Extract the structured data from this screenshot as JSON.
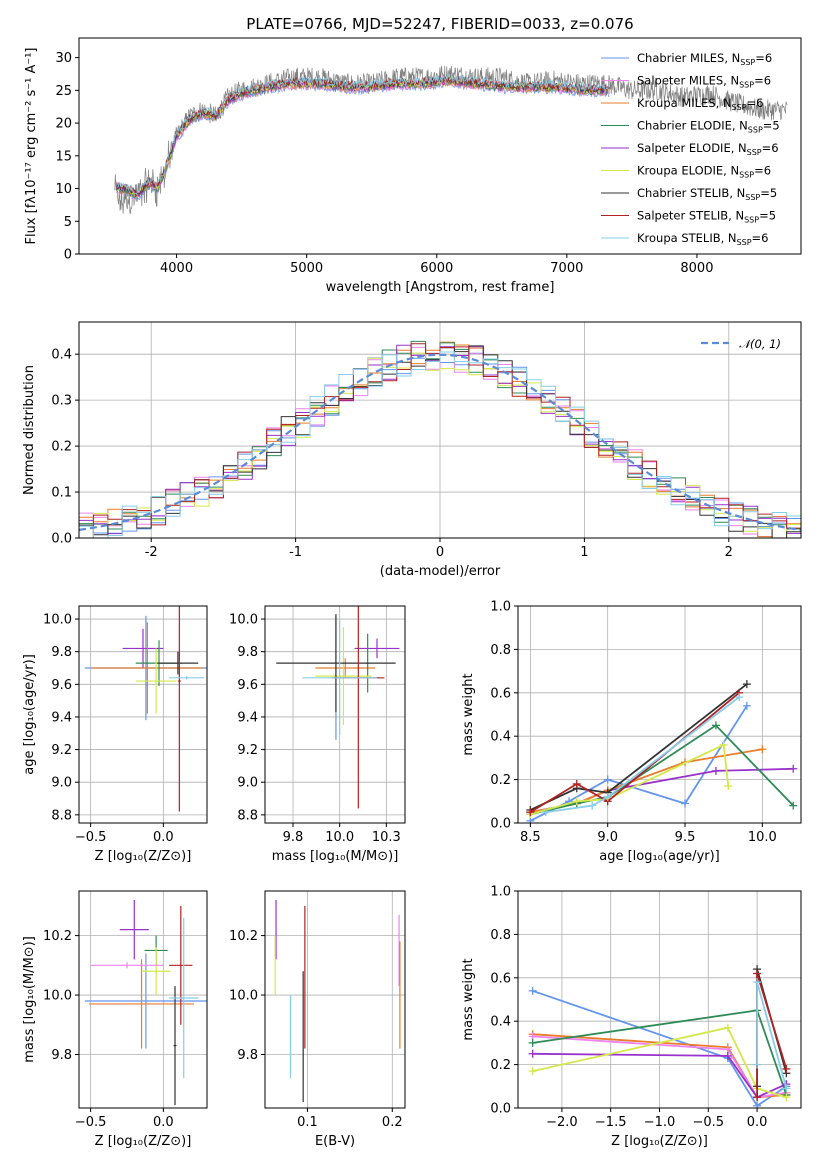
{
  "chart_data": [
    {
      "id": "spectrum",
      "type": "line",
      "title": "PLATE=0766, MJD=52247, FIBERID=0033, z=0.076",
      "xlabel": "wavelength [Angstrom, rest frame]",
      "ylabel": "Flux [fλ10⁻¹⁷ erg cm⁻² s⁻¹ A⁻¹]",
      "xlim": [
        3250,
        8800
      ],
      "ylim": [
        0,
        33
      ],
      "xticks": [
        4000,
        5000,
        6000,
        7000,
        8000
      ],
      "yticks": [
        0,
        5,
        10,
        15,
        20,
        25,
        30
      ],
      "grid": false,
      "legend_position": "top-right",
      "data_x": [
        3525,
        3560,
        3600,
        3700,
        3800,
        3850,
        3900,
        3950,
        4000,
        4100,
        4200,
        4300,
        4400,
        4500,
        4700,
        4900,
        5100,
        5300,
        5500,
        5700,
        5900,
        6100,
        6300,
        6500,
        6700,
        6900,
        7100,
        7300,
        7500,
        7700,
        7900,
        8100,
        8300,
        8500,
        8700
      ],
      "data_y": [
        10,
        8,
        8,
        9,
        11,
        10,
        12,
        15,
        18,
        21,
        22,
        21,
        24,
        25,
        26,
        27,
        27,
        26,
        26,
        27,
        27,
        27.5,
        27,
        27,
        26,
        26.5,
        26,
        26,
        25,
        25,
        24,
        24.5,
        23,
        22,
        22
      ],
      "model_x": [
        3540,
        3600,
        3700,
        3800,
        3850,
        3900,
        3950,
        4000,
        4100,
        4200,
        4300,
        4400,
        4500,
        4700,
        4900,
        5100,
        5300,
        5500,
        5700,
        5900,
        6100,
        6300,
        6500,
        6700,
        6900,
        7100,
        7300
      ],
      "model_y": [
        10,
        10,
        9,
        11,
        10,
        12,
        15,
        18,
        20.5,
        21.5,
        21,
        23.5,
        24.5,
        25.5,
        26,
        26,
        25.5,
        25.5,
        26,
        26,
        26.5,
        26,
        25.5,
        25.5,
        25.5,
        25,
        25
      ],
      "legend": [
        {
          "label": "Chabrier MILES, N",
          "sub": "SSP",
          "tail": "=6",
          "color": "#6495ed"
        },
        {
          "label": "Salpeter MILES, N",
          "sub": "SSP",
          "tail": "=6",
          "color": "#ee82ee"
        },
        {
          "label": "Kroupa MILES, N",
          "sub": "SSP",
          "tail": "=6",
          "color": "#e87d2a"
        },
        {
          "label": "Chabrier ELODIE, N",
          "sub": "SSP",
          "tail": "=5",
          "color": "#2e8b57"
        },
        {
          "label": "Salpeter ELODIE, N",
          "sub": "SSP",
          "tail": "=6",
          "color": "#9932cc"
        },
        {
          "label": "Kroupa ELODIE, N",
          "sub": "SSP",
          "tail": "=6",
          "color": "#d4e84a"
        },
        {
          "label": "Chabrier STELIB, N",
          "sub": "SSP",
          "tail": "=5",
          "color": "#333333"
        },
        {
          "label": "Salpeter STELIB, N",
          "sub": "SSP",
          "tail": "=5",
          "color": "#b22222"
        },
        {
          "label": "Kroupa STELIB, N",
          "sub": "SSP",
          "tail": "=6",
          "color": "#87ceeb"
        }
      ]
    },
    {
      "id": "residuals",
      "type": "line",
      "xlabel": "(data-model)/error",
      "ylabel": "Normed distribution",
      "xlim": [
        -2.5,
        2.5
      ],
      "ylim": [
        0,
        0.47
      ],
      "xticks": [
        -2,
        -1,
        0,
        1,
        2
      ],
      "yticks": [
        0.0,
        0.1,
        0.2,
        0.3,
        0.4
      ],
      "grid": true,
      "legend_position": "top-right",
      "legend": [
        {
          "label": "𝒩(0, 1)",
          "color": "#5b8bd6"
        }
      ]
    },
    {
      "id": "age_vs_Z",
      "type": "scatter",
      "xlabel": "Z [log₁₀(Z/Z⊙)]",
      "ylabel": "age  [log₁₀(age/yr)]",
      "xlim": [
        -0.58,
        0.3
      ],
      "ylim": [
        8.75,
        10.08
      ],
      "xticks": [
        -0.5,
        0.0
      ],
      "yticks": [
        8.8,
        9.0,
        9.2,
        9.4,
        9.6,
        9.8,
        10.0
      ],
      "grid": true,
      "points": [
        {
          "x": -0.12,
          "y": 9.7,
          "xerr": 0.42,
          "yerr": 0.32,
          "color": "#6495ed"
        },
        {
          "x": -0.14,
          "y": 9.82,
          "xerr": 0.14,
          "yerr": 0.12,
          "color": "#9932cc"
        },
        {
          "x": -0.11,
          "y": 9.7,
          "xerr": 0.38,
          "yerr": 0.28,
          "color": "#e87d2a"
        },
        {
          "x": -0.03,
          "y": 9.73,
          "xerr": 0.16,
          "yerr": 0.14,
          "color": "#2e8b57"
        },
        {
          "x": -0.05,
          "y": 9.62,
          "xerr": 0.14,
          "yerr": 0.2,
          "color": "#d4e84a"
        },
        {
          "x": 0.1,
          "y": 9.73,
          "xerr": 0.14,
          "yerr": 0.07,
          "color": "#333333"
        },
        {
          "x": 0.11,
          "y": 9.62,
          "xerr": 0.01,
          "yerr": 0.8,
          "color": "#b22222"
        },
        {
          "x": 0.16,
          "y": 9.64,
          "xerr": 0.12,
          "yerr": 0.01,
          "color": "#87ceeb"
        }
      ]
    },
    {
      "id": "age_vs_mass",
      "type": "scatter",
      "xlabel": "mass [log₁₀(M/M⊙)]",
      "xlim": [
        9.6,
        10.35
      ],
      "ylim": [
        8.75,
        10.08
      ],
      "xticks": [
        9.75,
        10.0,
        10.25
      ],
      "yticks": [
        8.8,
        9.0,
        9.2,
        9.4,
        9.6,
        9.8,
        10.0
      ],
      "grid": true,
      "points": [
        {
          "x": 9.98,
          "y": 9.64,
          "xerr": 0.01,
          "yerr": 0.38,
          "color": "#6495ed"
        },
        {
          "x": 10.2,
          "y": 9.82,
          "xerr": 0.12,
          "yerr": 0.06,
          "color": "#9932cc"
        },
        {
          "x": 10.03,
          "y": 9.7,
          "xerr": 0.16,
          "yerr": 0.06,
          "color": "#e87d2a"
        },
        {
          "x": 10.15,
          "y": 9.73,
          "xerr": 0.01,
          "yerr": 0.18,
          "color": "#2e8b57"
        },
        {
          "x": 10.02,
          "y": 9.65,
          "xerr": 0.15,
          "yerr": 0.3,
          "color": "#d4e84a"
        },
        {
          "x": 9.98,
          "y": 9.73,
          "xerr": 0.32,
          "yerr": 0.3,
          "color": "#333333"
        },
        {
          "x": 10.1,
          "y": 9.64,
          "xerr": 0.14,
          "yerr": 0.8,
          "color": "#b22222"
        },
        {
          "x": 10.0,
          "y": 9.64,
          "xerr": 0.2,
          "yerr": 0.35,
          "color": "#87ceeb"
        }
      ]
    },
    {
      "id": "weight_vs_age",
      "type": "line",
      "xlabel": "age  [log₁₀(age/yr)]",
      "ylabel": "mass weight",
      "xlim": [
        8.42,
        10.25
      ],
      "ylim": [
        0,
        1.0
      ],
      "xticks": [
        8.5,
        9.0,
        9.5,
        10.0
      ],
      "yticks": [
        0.0,
        0.2,
        0.4,
        0.6,
        0.8,
        1.0
      ],
      "grid": true,
      "series": [
        {
          "color": "#6495ed",
          "x": [
            8.5,
            8.75,
            9.0,
            9.5,
            9.9
          ],
          "y": [
            0.01,
            0.1,
            0.2,
            0.09,
            0.54
          ]
        },
        {
          "color": "#9932cc",
          "x": [
            8.5,
            8.8,
            9.0,
            9.7,
            10.2
          ],
          "y": [
            0.05,
            0.09,
            0.15,
            0.24,
            0.25
          ]
        },
        {
          "color": "#e87d2a",
          "x": [
            8.5,
            8.8,
            9.0,
            9.5,
            10.0
          ],
          "y": [
            0.05,
            0.09,
            0.15,
            0.28,
            0.34
          ]
        },
        {
          "color": "#2e8b57",
          "x": [
            8.5,
            8.8,
            9.0,
            9.7,
            10.2
          ],
          "y": [
            0.04,
            0.09,
            0.12,
            0.45,
            0.08
          ]
        },
        {
          "color": "#d4e84a",
          "x": [
            8.5,
            8.8,
            9.0,
            9.75,
            9.78
          ],
          "y": [
            0.04,
            0.1,
            0.11,
            0.36,
            0.17
          ]
        },
        {
          "color": "#333333",
          "x": [
            8.5,
            8.8,
            9.0,
            9.9
          ],
          "y": [
            0.06,
            0.16,
            0.14,
            0.64
          ]
        },
        {
          "color": "#b22222",
          "x": [
            8.5,
            8.8,
            9.0,
            9.85
          ],
          "y": [
            0.05,
            0.18,
            0.1,
            0.6
          ]
        },
        {
          "color": "#87ceeb",
          "x": [
            8.6,
            8.9,
            9.0,
            9.85
          ],
          "y": [
            0.05,
            0.08,
            0.12,
            0.58
          ]
        }
      ]
    },
    {
      "id": "mass_vs_Z",
      "type": "scatter",
      "xlabel": "Z [log₁₀(Z/Z⊙)]",
      "ylabel": "mass [log₁₀(M/M⊙)]",
      "xlim": [
        -0.58,
        0.3
      ],
      "ylim": [
        9.62,
        10.35
      ],
      "xticks": [
        -0.5,
        0.0
      ],
      "yticks": [
        9.8,
        10.0,
        10.2
      ],
      "grid": true,
      "points": [
        {
          "x": -0.12,
          "y": 9.98,
          "xerr": 0.42,
          "yerr": 0.16,
          "color": "#6495ed"
        },
        {
          "x": -0.2,
          "y": 10.22,
          "xerr": 0.1,
          "yerr": 0.1,
          "color": "#9932cc"
        },
        {
          "x": -0.15,
          "y": 9.97,
          "xerr": 0.36,
          "yerr": 0.15,
          "color": "#e87d2a"
        },
        {
          "x": -0.05,
          "y": 10.15,
          "xerr": 0.08,
          "yerr": 0.05,
          "color": "#2e8b57"
        },
        {
          "x": -0.05,
          "y": 10.08,
          "xerr": 0.1,
          "yerr": 0.08,
          "color": "#d4e84a"
        },
        {
          "x": 0.08,
          "y": 9.83,
          "xerr": 0.01,
          "yerr": 0.2,
          "color": "#333333"
        },
        {
          "x": 0.12,
          "y": 10.1,
          "xerr": 0.08,
          "yerr": 0.2,
          "color": "#b22222"
        },
        {
          "x": 0.14,
          "y": 9.99,
          "xerr": 0.1,
          "yerr": 0.27,
          "color": "#87ceeb"
        },
        {
          "x": -0.25,
          "y": 10.1,
          "xerr": 0.25,
          "yerr": 0.01,
          "color": "#ee82ee"
        }
      ]
    },
    {
      "id": "mass_vs_ebv",
      "type": "scatter",
      "xlabel": "E(B-V)",
      "xlim": [
        0.05,
        0.215
      ],
      "ylim": [
        9.62,
        10.35
      ],
      "xticks": [
        0.1,
        0.2
      ],
      "yticks": [
        9.8,
        10.0,
        10.2
      ],
      "grid": true,
      "points": [
        {
          "x": 0.063,
          "y": 10.22,
          "xerr": 0,
          "yerr": 0.1,
          "color": "#9932cc"
        },
        {
          "x": 0.062,
          "y": 10.1,
          "xerr": 0,
          "yerr": 0.1,
          "color": "#d4e84a"
        },
        {
          "x": 0.08,
          "y": 9.86,
          "xerr": 0,
          "yerr": 0.14,
          "color": "#87ceeb"
        },
        {
          "x": 0.095,
          "y": 9.86,
          "xerr": 0,
          "yerr": 0.22,
          "color": "#333333"
        },
        {
          "x": 0.097,
          "y": 10.06,
          "xerr": 0,
          "yerr": 0.24,
          "color": "#b22222"
        },
        {
          "x": 0.208,
          "y": 10.15,
          "xerr": 0,
          "yerr": 0.12,
          "color": "#ee82ee"
        },
        {
          "x": 0.209,
          "y": 10.0,
          "xerr": 0,
          "yerr": 0.18,
          "color": "#e87d2a"
        }
      ]
    },
    {
      "id": "weight_vs_Z",
      "type": "line",
      "xlabel": "Z [log₁₀(Z/Z⊙)]",
      "ylabel": "mass weight",
      "xlim": [
        -2.45,
        0.45
      ],
      "ylim": [
        0,
        1.0
      ],
      "xticks": [
        -2.0,
        -1.5,
        -1.0,
        -0.5,
        0.0
      ],
      "yticks": [
        0.0,
        0.2,
        0.4,
        0.6,
        0.8,
        1.0
      ],
      "grid": true,
      "series": [
        {
          "color": "#6495ed",
          "x": [
            -2.3,
            -0.3,
            0.0,
            0.3
          ],
          "y": [
            0.54,
            0.23,
            0.01,
            0.1
          ]
        },
        {
          "color": "#e87d2a",
          "x": [
            -2.3,
            -0.3,
            0.0,
            0.3
          ],
          "y": [
            0.34,
            0.28,
            0.05,
            0.06
          ]
        },
        {
          "color": "#ee82ee",
          "x": [
            -2.3,
            -0.3,
            0.0,
            0.3
          ],
          "y": [
            0.33,
            0.27,
            0.05,
            0.07
          ]
        },
        {
          "color": "#2e8b57",
          "x": [
            -2.3,
            0.0,
            0.3
          ],
          "y": [
            0.3,
            0.45,
            0.06
          ]
        },
        {
          "color": "#9932cc",
          "x": [
            -2.3,
            -0.3,
            0.0,
            0.3
          ],
          "y": [
            0.25,
            0.24,
            0.05,
            0.11
          ]
        },
        {
          "color": "#d4e84a",
          "x": [
            -2.3,
            -0.3,
            0.0,
            0.3
          ],
          "y": [
            0.17,
            0.37,
            0.09,
            0.05
          ]
        },
        {
          "color": "#333333",
          "x": [
            0.0,
            0.0,
            0.3
          ],
          "y": [
            0.1,
            0.64,
            0.16
          ]
        },
        {
          "color": "#b22222",
          "x": [
            0.0,
            0.0,
            0.3
          ],
          "y": [
            0.05,
            0.62,
            0.18
          ]
        },
        {
          "color": "#87ceeb",
          "x": [
            0.0,
            0.0,
            0.3
          ],
          "y": [
            0.2,
            0.58,
            0.09
          ]
        }
      ]
    }
  ]
}
